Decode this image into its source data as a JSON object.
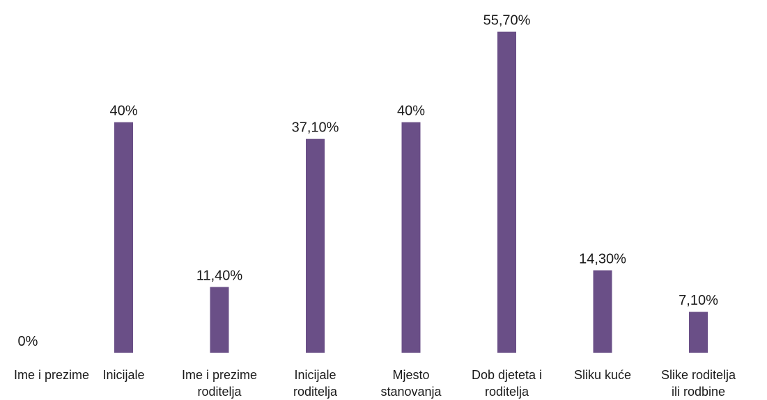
{
  "chart_data": {
    "type": "bar",
    "categories": [
      [
        "Ime i prezime"
      ],
      [
        "Inicijale"
      ],
      [
        "Ime i prezime",
        "roditelja"
      ],
      [
        "Inicijale",
        "roditelja"
      ],
      [
        "Mjesto",
        "stanovanja"
      ],
      [
        "Dob djeteta i",
        "roditelja"
      ],
      [
        "Sliku kuće"
      ],
      [
        "Slike roditelja",
        "ili rodbine"
      ]
    ],
    "values": [
      0,
      40,
      11.4,
      37.1,
      40,
      55.7,
      14.3,
      7.1
    ],
    "data_labels": [
      "0%",
      "40%",
      "11,40%",
      "37,10%",
      "40%",
      "55,70%",
      "14,30%",
      "7,10%"
    ],
    "ylim": [
      0,
      60
    ],
    "grid": false,
    "legend": "none",
    "title": "",
    "xlabel": "",
    "ylabel": "",
    "bar_color": "#6a4f87"
  }
}
